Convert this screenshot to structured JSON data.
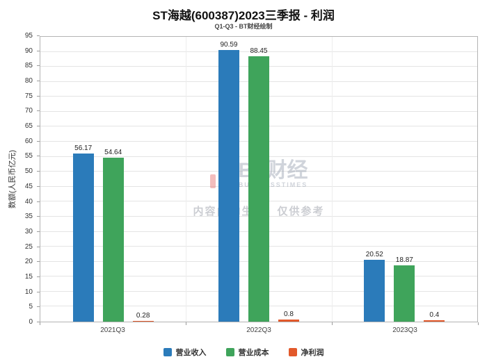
{
  "title": "ST海越(600387)2023三季报 - 利润",
  "subtitle": "Q1-Q3 - BT财经绘制",
  "watermark": {
    "brand": "BT财经",
    "brand_sub": "BUSINESSTIMES",
    "disclaimer": "内容由AI生成，仅供参考"
  },
  "chart_data": {
    "type": "bar",
    "title": "ST海越(600387)2023三季报 - 利润",
    "subtitle": "Q1-Q3 - BT财经绘制",
    "categories": [
      "2021Q3",
      "2022Q3",
      "2023Q3"
    ],
    "series": [
      {
        "name": "营业收入",
        "color": "#2b7bba",
        "values": [
          56.17,
          90.59,
          20.52
        ]
      },
      {
        "name": "营业成本",
        "color": "#3fa45b",
        "values": [
          54.64,
          88.45,
          18.87
        ]
      },
      {
        "name": "净利润",
        "color": "#e2592b",
        "values": [
          0.28,
          0.8,
          0.4
        ]
      }
    ],
    "xlabel": "",
    "ylabel": "数额(人民币亿元)",
    "ylim": [
      0,
      95
    ],
    "ytick_step": 5,
    "grid": true,
    "legend_position": "bottom"
  }
}
